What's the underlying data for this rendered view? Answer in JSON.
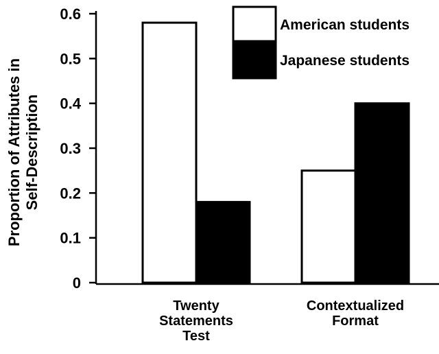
{
  "chart_data": {
    "type": "bar",
    "title": "",
    "xlabel": "",
    "ylabel": [
      "Proportion of Attributes in",
      "Self-Description"
    ],
    "ylim": [
      0,
      0.6
    ],
    "yticks": [
      "0",
      "0.1",
      "0.2",
      "0.3",
      "0.4",
      "0.5",
      "0.6"
    ],
    "categories": [
      [
        "Twenty",
        "Statements",
        "Test"
      ],
      [
        "Contextualized",
        "Format"
      ]
    ],
    "series": [
      {
        "name": "American students",
        "values": [
          0.58,
          0.25
        ],
        "color": "#ffffff"
      },
      {
        "name": "Japanese students",
        "values": [
          0.18,
          0.4
        ],
        "color": "#000000"
      }
    ],
    "legend_position": "top-right",
    "grid": false
  }
}
